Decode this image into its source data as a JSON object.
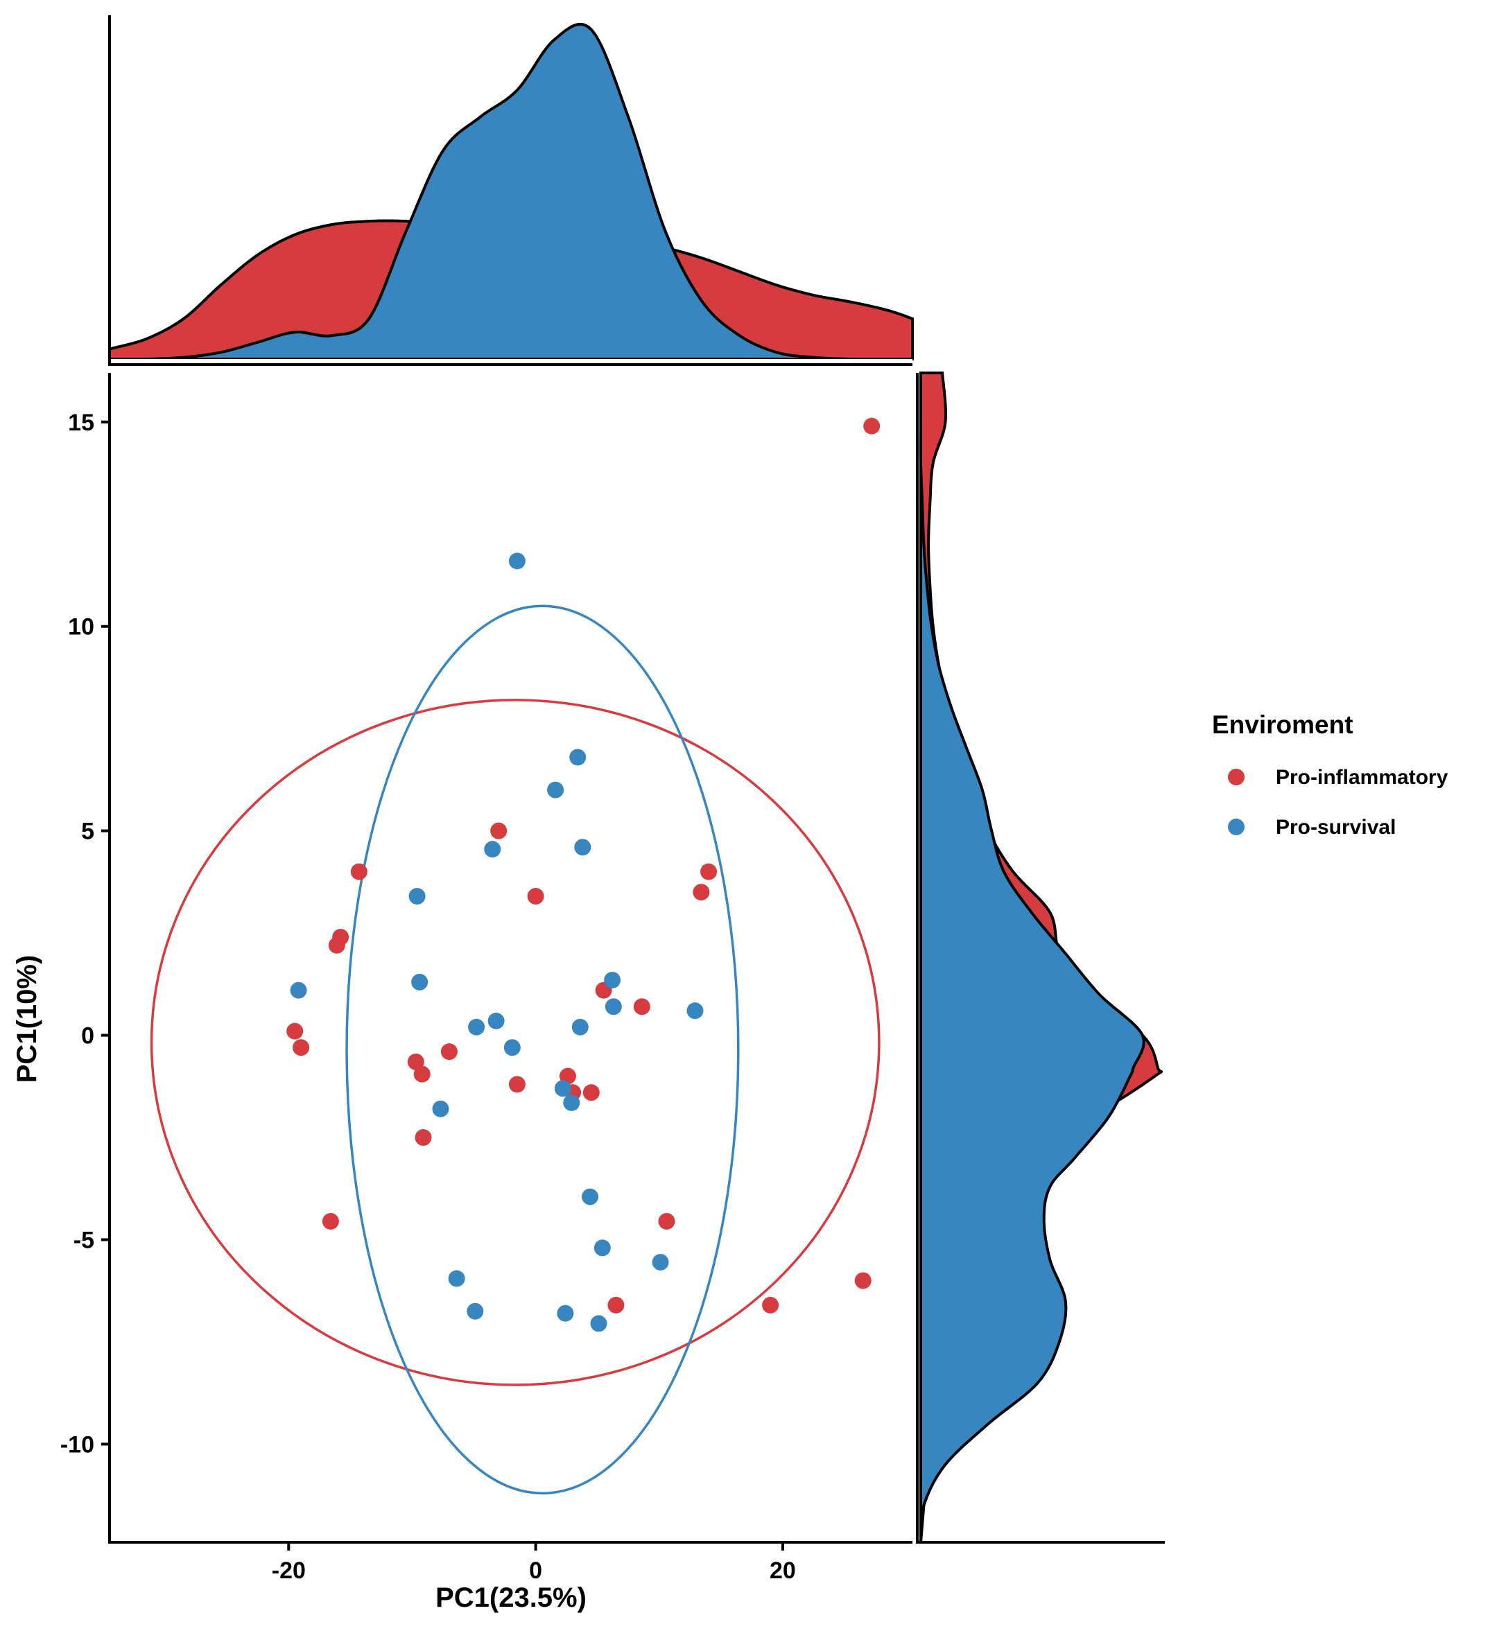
{
  "chart_data": {
    "type": "scatter",
    "xlabel": "PC1(23.5%)",
    "ylabel": "PC1(10%)",
    "xlim": [
      -34.5,
      30.5
    ],
    "ylim": [
      -12.4,
      16.2
    ],
    "xticks": [
      -20,
      0,
      20
    ],
    "xtick_labels": [
      "-20",
      "0",
      "20"
    ],
    "yticks": [
      -10,
      -5,
      0,
      5,
      10,
      15
    ],
    "ytick_labels": [
      "-10",
      "-5",
      "0",
      "5",
      "10",
      "15"
    ],
    "grid": false,
    "legend": {
      "title": "Enviroment",
      "position": "right"
    },
    "series": [
      {
        "name": "Pro-inflammatory",
        "color": "#D63B3F",
        "points": [
          [
            27.2,
            14.9
          ],
          [
            -3.0,
            5.0
          ],
          [
            -14.3,
            4.0
          ],
          [
            0.0,
            3.4
          ],
          [
            14.0,
            4.0
          ],
          [
            13.4,
            3.5
          ],
          [
            -15.8,
            2.4
          ],
          [
            -16.1,
            2.2
          ],
          [
            5.5,
            1.1
          ],
          [
            8.6,
            0.7
          ],
          [
            -19.5,
            0.1
          ],
          [
            -19.0,
            -0.3
          ],
          [
            -7.0,
            -0.4
          ],
          [
            -9.7,
            -0.65
          ],
          [
            -9.2,
            -0.95
          ],
          [
            -1.5,
            -1.2
          ],
          [
            2.6,
            -1.0
          ],
          [
            3.0,
            -1.4
          ],
          [
            4.5,
            -1.4
          ],
          [
            -9.1,
            -2.5
          ],
          [
            -16.6,
            -4.55
          ],
          [
            10.6,
            -4.55
          ],
          [
            6.5,
            -6.6
          ],
          [
            19.0,
            -6.6
          ],
          [
            26.5,
            -6.0
          ]
        ]
      },
      {
        "name": "Pro-survival",
        "color": "#3786BF",
        "points": [
          [
            -1.5,
            11.6
          ],
          [
            3.4,
            6.8
          ],
          [
            1.6,
            6.0
          ],
          [
            -3.5,
            4.55
          ],
          [
            3.8,
            4.6
          ],
          [
            -9.6,
            3.4
          ],
          [
            -9.4,
            1.3
          ],
          [
            6.2,
            1.35
          ],
          [
            6.3,
            0.7
          ],
          [
            12.9,
            0.6
          ],
          [
            -19.2,
            1.1
          ],
          [
            -3.2,
            0.35
          ],
          [
            -4.8,
            0.2
          ],
          [
            3.6,
            0.2
          ],
          [
            -1.9,
            -0.3
          ],
          [
            -7.7,
            -1.8
          ],
          [
            2.2,
            -1.3
          ],
          [
            2.9,
            -1.65
          ],
          [
            4.4,
            -3.95
          ],
          [
            5.4,
            -5.2
          ],
          [
            10.1,
            -5.55
          ],
          [
            -6.4,
            -5.95
          ],
          [
            -4.9,
            -6.75
          ],
          [
            2.4,
            -6.8
          ],
          [
            5.1,
            -7.05
          ]
        ]
      }
    ],
    "ellipses": [
      {
        "series": "Pro-inflammatory",
        "x_range": [
          -31.1,
          27.8
        ],
        "y_range": [
          -8.55,
          8.2
        ]
      },
      {
        "series": "Pro-survival",
        "x_range": [
          -15.3,
          16.4
        ],
        "y_range": [
          -11.2,
          10.5
        ]
      }
    ],
    "marginal_x_density": {
      "x": [
        -34.5,
        -31.5,
        -28.5,
        -25.5,
        -22.5,
        -19.5,
        -16.5,
        -13.5,
        -10.5,
        -7.5,
        -4.5,
        -1.5,
        1.5,
        4.5,
        7.5,
        10.5,
        13.5,
        16.5,
        19.5,
        22.5,
        25.5,
        28.5,
        30.5
      ],
      "Pro-inflammatory": [
        0.03,
        0.06,
        0.12,
        0.22,
        0.31,
        0.37,
        0.4,
        0.41,
        0.41,
        0.4,
        0.38,
        0.37,
        0.36,
        0.35,
        0.34,
        0.33,
        0.3,
        0.26,
        0.22,
        0.19,
        0.17,
        0.145,
        0.12
      ],
      "Pro-survival": [
        0.0,
        0.0,
        0.005,
        0.02,
        0.05,
        0.08,
        0.07,
        0.12,
        0.38,
        0.62,
        0.72,
        0.8,
        0.95,
        0.98,
        0.72,
        0.38,
        0.17,
        0.07,
        0.02,
        0.005,
        0.0,
        0.0,
        0.0
      ]
    },
    "marginal_y_density": {
      "y": [
        -12.4,
        -11.5,
        -10.5,
        -9.5,
        -8.5,
        -7.5,
        -6.5,
        -5.5,
        -4.5,
        -3.7,
        -3.0,
        -2.0,
        -1.0,
        -0.8,
        0.0,
        1.0,
        2.0,
        3.0,
        4.0,
        5.0,
        6.0,
        7.0,
        8.0,
        9.0,
        10.0,
        11.0,
        12.0,
        13.0,
        14.0,
        15.0,
        16.2
      ],
      "Pro-inflammatory": [
        0.0,
        0.01,
        0.02,
        0.05,
        0.09,
        0.11,
        0.11,
        0.13,
        0.12,
        0.15,
        0.27,
        0.55,
        0.76,
        0.77,
        0.72,
        0.53,
        0.45,
        0.42,
        0.3,
        0.22,
        0.18,
        0.14,
        0.09,
        0.06,
        0.04,
        0.03,
        0.025,
        0.03,
        0.04,
        0.08,
        0.07
      ],
      "Pro-survival": [
        0.0,
        0.01,
        0.08,
        0.22,
        0.38,
        0.45,
        0.47,
        0.42,
        0.4,
        0.42,
        0.5,
        0.61,
        0.68,
        0.69,
        0.72,
        0.58,
        0.47,
        0.36,
        0.27,
        0.23,
        0.2,
        0.15,
        0.1,
        0.06,
        0.035,
        0.02,
        0.01,
        0.005,
        0.0,
        0.0,
        0.0
      ]
    }
  }
}
